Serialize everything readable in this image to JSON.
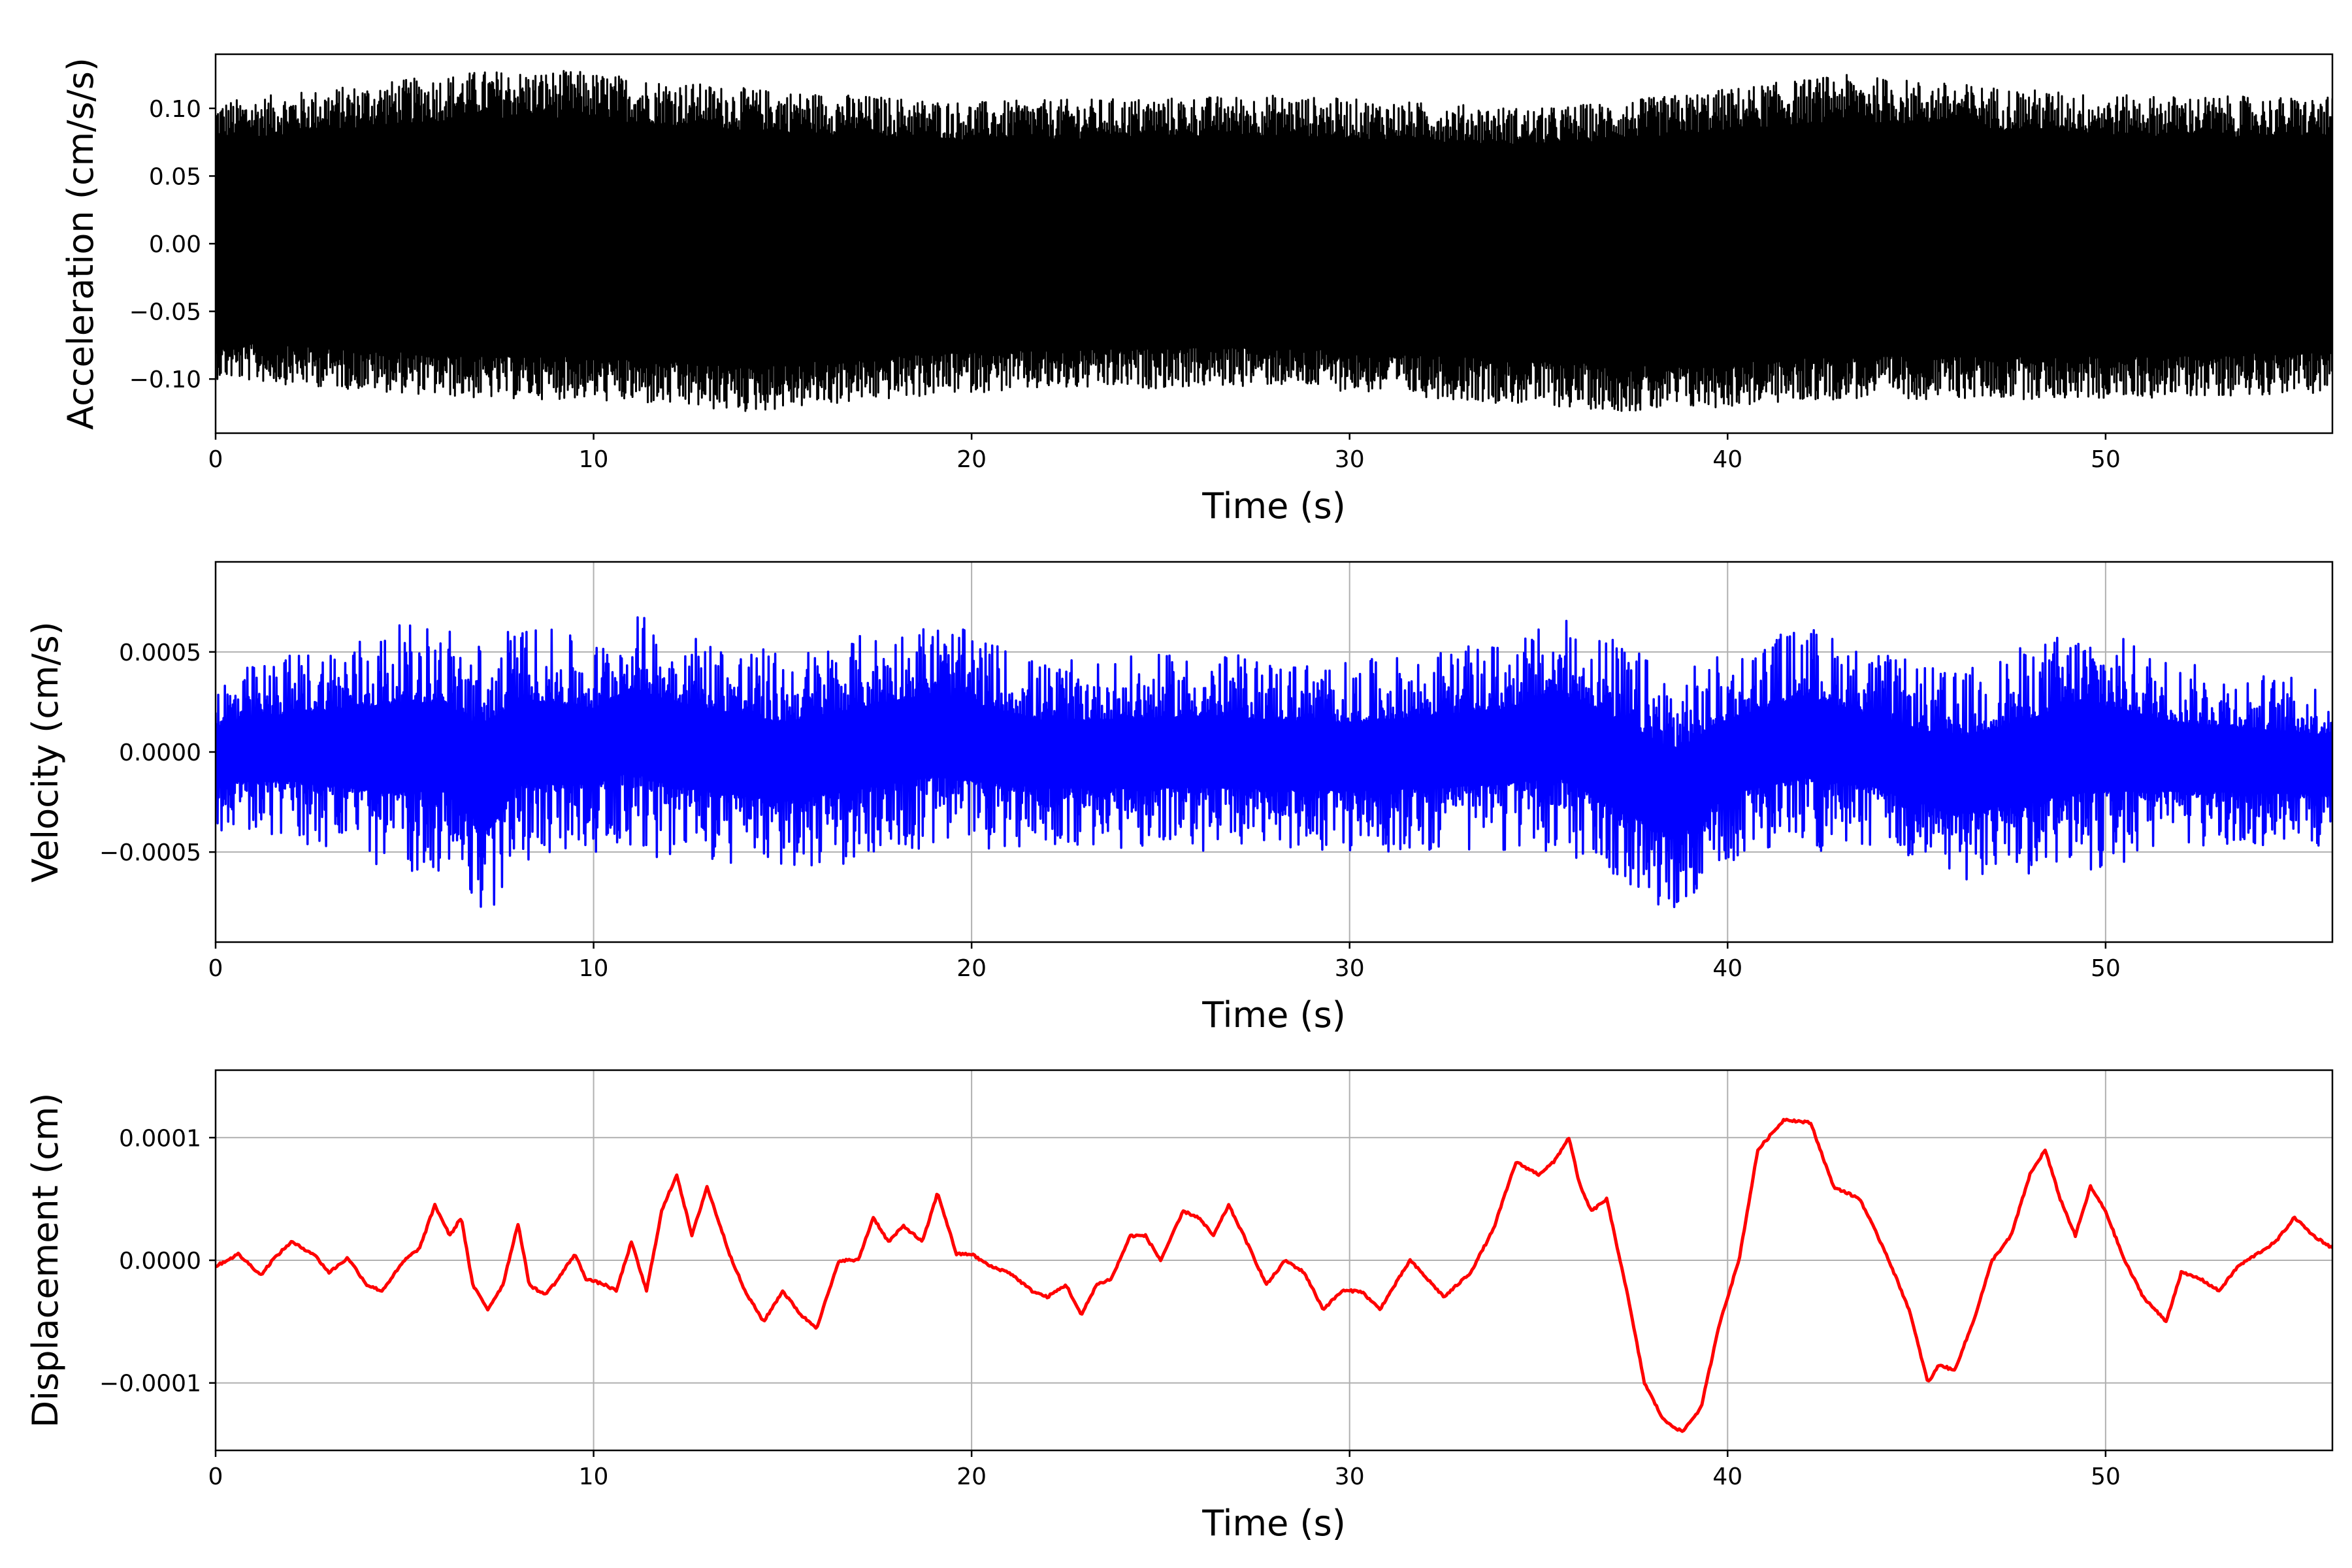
{
  "chart_data": [
    {
      "type": "line",
      "title": "",
      "xlabel": "Time (s)",
      "ylabel": "Acceleration (cm/s/s)",
      "color": "#000000",
      "grid": false,
      "xlim": [
        0,
        56
      ],
      "ylim": [
        -0.14,
        0.14
      ],
      "xticks": [
        0,
        10,
        20,
        30,
        40,
        50
      ],
      "yticks": [
        0.1,
        0.05,
        0.0,
        -0.05,
        -0.1
      ],
      "ytick_labels": [
        "0.10",
        "0.05",
        "0.00",
        "−0.05",
        "−0.10"
      ],
      "series": [
        {
          "style": "dense oscillation",
          "x": [
            0,
            7,
            9.5,
            14,
            20,
            28,
            35,
            38,
            43,
            50,
            56
          ],
          "upper_envelope": [
            0.105,
            0.128,
            0.128,
            0.115,
            0.105,
            0.11,
            0.1,
            0.108,
            0.125,
            0.11,
            0.108
          ],
          "lower_envelope": [
            -0.1,
            -0.115,
            -0.115,
            -0.125,
            -0.11,
            -0.105,
            -0.12,
            -0.125,
            -0.115,
            -0.115,
            -0.11
          ]
        }
      ]
    },
    {
      "type": "line",
      "title": "",
      "xlabel": "Time (s)",
      "ylabel": "Velocity (cm/s)",
      "color": "#0000ff",
      "grid": true,
      "xlim": [
        0,
        56
      ],
      "ylim": [
        -0.00095,
        0.00095
      ],
      "xticks": [
        0,
        10,
        20,
        30,
        40,
        50
      ],
      "yticks": [
        0.0005,
        0.0,
        -0.0005
      ],
      "ytick_labels": [
        "0.0005",
        "0.0000",
        "−0.0005"
      ],
      "series": [
        {
          "style": "dense oscillation",
          "x": [
            0,
            2,
            4.6,
            6,
            7.2,
            8,
            10,
            11,
            12,
            15,
            19,
            22,
            26,
            30,
            34,
            35.5,
            36.2,
            38.6,
            40,
            42,
            44,
            46,
            49.5,
            52,
            56
          ],
          "upper_envelope": [
            0.00038,
            0.0005,
            0.00063,
            0.00066,
            0.00055,
            0.00066,
            0.00055,
            0.0007,
            0.00064,
            0.0005,
            0.00067,
            0.00045,
            0.0005,
            0.00045,
            0.00055,
            0.00066,
            0.00066,
            0.0004,
            0.0005,
            0.00065,
            0.0005,
            0.0004,
            0.00065,
            0.00045,
            0.00035
          ],
          "lower_envelope": [
            -0.0004,
            -0.00045,
            -0.0006,
            -0.0006,
            -0.00085,
            -0.00055,
            -0.0005,
            -0.00048,
            -0.00055,
            -0.0006,
            -0.0005,
            -0.00048,
            -0.0005,
            -0.0005,
            -0.0005,
            -0.0005,
            -0.0006,
            -0.00082,
            -0.00055,
            -0.0005,
            -0.0005,
            -0.00065,
            -0.0006,
            -0.0005,
            -0.00048
          ]
        }
      ]
    },
    {
      "type": "line",
      "title": "",
      "xlabel": "Time (s)",
      "ylabel": "Displacement (cm)",
      "color": "#ff0000",
      "grid": true,
      "xlim": [
        0,
        56
      ],
      "ylim": [
        -0.000155,
        0.000155
      ],
      "xticks": [
        0,
        10,
        20,
        30,
        40,
        50
      ],
      "yticks": [
        0.0001,
        0.0,
        -0.0001
      ],
      "ytick_labels": [
        "0.0001",
        "0.0000",
        "−0.0001"
      ],
      "series": [
        {
          "x": [
            0,
            0.6,
            1.2,
            1.5,
            2.0,
            2.6,
            3.0,
            3.5,
            4.0,
            4.4,
            5.0,
            5.4,
            5.8,
            6.2,
            6.5,
            6.8,
            7.2,
            7.6,
            8.0,
            8.3,
            8.7,
            9.0,
            9.5,
            9.8,
            10.3,
            10.6,
            11.0,
            11.4,
            11.8,
            12.2,
            12.6,
            13.0,
            13.6,
            14.0,
            14.5,
            15.0,
            15.5,
            15.9,
            16.5,
            17.0,
            17.4,
            17.8,
            18.2,
            18.7,
            19.1,
            19.6,
            20.0,
            20.5,
            21.0,
            21.6,
            22.0,
            22.5,
            22.9,
            23.3,
            23.7,
            24.2,
            24.6,
            25.0,
            25.6,
            26.0,
            26.4,
            26.8,
            27.2,
            27.8,
            28.3,
            28.8,
            29.3,
            29.8,
            30.3,
            30.8,
            31.6,
            32.5,
            33.2,
            33.8,
            34.4,
            35.0,
            35.4,
            35.8,
            36.1,
            36.4,
            36.8,
            37.3,
            37.8,
            38.3,
            38.8,
            39.3,
            39.8,
            40.3,
            40.8,
            41.5,
            42.2,
            42.8,
            43.5,
            44.2,
            44.8,
            45.3,
            45.6,
            46.0,
            46.5,
            47.0,
            47.5,
            48.0,
            48.4,
            48.8,
            49.2,
            49.6,
            50.0,
            50.5,
            51.0,
            51.6,
            52.0,
            52.5,
            53.0,
            53.5,
            54.0,
            54.5,
            55.0,
            55.5,
            56.0
          ],
          "y": [
            -5e-06,
            5e-06,
            -1.2e-05,
            0.0,
            1.5e-05,
            5e-06,
            -1e-05,
            2e-06,
            -2e-05,
            -2.5e-05,
            0.0,
            1e-05,
            4.5e-05,
            2e-05,
            3.5e-05,
            -2e-05,
            -4e-05,
            -2e-05,
            3e-05,
            -2e-05,
            -2.8e-05,
            -1.8e-05,
            5e-06,
            -1.5e-05,
            -2e-05,
            -2.5e-05,
            1.5e-05,
            -2.5e-05,
            4e-05,
            7e-05,
            2e-05,
            6e-05,
            5e-06,
            -2.5e-05,
            -5e-05,
            -2.5e-05,
            -4.5e-05,
            -5.5e-05,
            0.0,
            0.0,
            3.5e-05,
            1.5e-05,
            2.8e-05,
            1.5e-05,
            5.5e-05,
            5e-06,
            5e-06,
            -5e-06,
            -1e-05,
            -2.5e-05,
            -3e-05,
            -2e-05,
            -4.5e-05,
            -2e-05,
            -1.5e-05,
            2e-05,
            2e-05,
            0.0,
            4e-05,
            3.5e-05,
            2e-05,
            4.5e-05,
            2e-05,
            -2e-05,
            0.0,
            -1e-05,
            -4e-05,
            -2.5e-05,
            -2.5e-05,
            -4e-05,
            0.0,
            -3e-05,
            -1e-05,
            2.5e-05,
            8e-05,
            7e-05,
            8e-05,
            0.0001,
            6e-05,
            4e-05,
            5e-05,
            -2e-05,
            -0.0001,
            -0.00013,
            -0.00014,
            -0.00012,
            -5e-05,
            0.0,
            9e-05,
            0.000115,
            0.000112,
            6e-05,
            5e-05,
            5e-06,
            -4e-05,
            -0.0001,
            -8.5e-05,
            -9e-05,
            -5e-05,
            0.0,
            2e-05,
            7e-05,
            9e-05,
            5e-05,
            2e-05,
            6e-05,
            4e-05,
            0.0,
            -3e-05,
            -5e-05,
            -1e-05,
            -1.5e-05,
            -2.5e-05,
            -5e-06,
            5e-06,
            1.5e-05,
            3.5e-05,
            2e-05,
            1e-05
          ]
        }
      ]
    }
  ]
}
